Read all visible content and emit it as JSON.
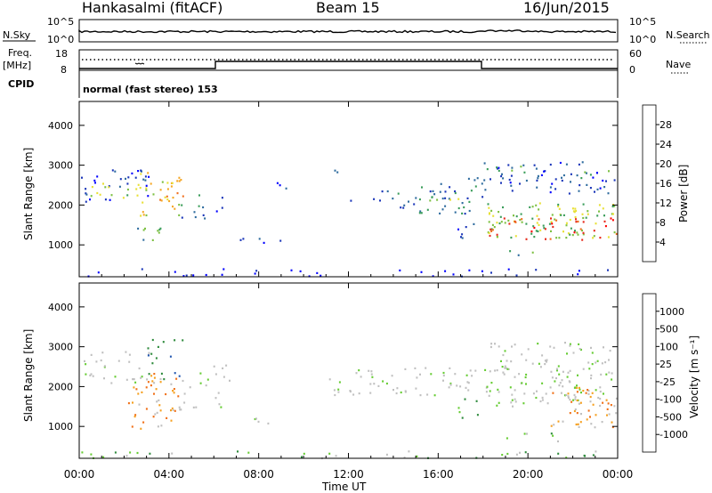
{
  "header": {
    "station": "Hankasalmi (fitACF)",
    "beam": "Beam 15",
    "date": "16/Jun/2015"
  },
  "panels": {
    "nsky": {
      "left_label": "N.Sky",
      "right_label": "N.Search",
      "ticks_left": [
        "10^5",
        "10^0"
      ],
      "ticks_right": [
        "10^5",
        "10^0"
      ]
    },
    "freq": {
      "label_line1": "Freq.",
      "label_line2": "[MHz]",
      "ticks_left": [
        "18",
        "8"
      ],
      "ticks_right": [
        "60",
        "0"
      ],
      "right_label": "Nave"
    },
    "cpid": {
      "label": "CPID",
      "text": "normal (fast stereo) 153"
    }
  },
  "chart_data": [
    {
      "type": "heatmap",
      "name": "power",
      "ylabel": "Slant Range [km]",
      "xlabel": "",
      "ylim": [
        200,
        4600
      ],
      "yticks": [
        "4000",
        "3000",
        "2000",
        "1000"
      ],
      "colorbar_label": "Power [dB]",
      "colorbar_ticks": [
        "28",
        "24",
        "20",
        "16",
        "12",
        "8",
        "4"
      ],
      "colorscale": [
        "#0000ff",
        "#1a35b8",
        "#2e6b9e",
        "#3a9d5a",
        "#7dc043",
        "#e8e035",
        "#f5a623",
        "#f07020",
        "#e62a1c",
        "#ff0000"
      ],
      "xlim_hours": [
        0,
        24
      ]
    },
    {
      "type": "heatmap",
      "name": "velocity",
      "ylabel": "Slant Range [km]",
      "xlabel": "Time UT",
      "ylim": [
        200,
        4600
      ],
      "yticks": [
        "4000",
        "3000",
        "2000",
        "1000"
      ],
      "xticks": [
        "00:00",
        "04:00",
        "08:00",
        "12:00",
        "16:00",
        "20:00",
        "00:00"
      ],
      "colorbar_label": "Velocity [m s⁻¹]",
      "colorbar_ticks": [
        "1000",
        "500",
        "100",
        "25",
        "-25",
        "-100",
        "-500",
        "-1000"
      ],
      "colorscale": [
        "#0033cc",
        "#2257b0",
        "#2e8a3c",
        "#66cc33",
        "#c0c0c0",
        "#c0c0c0",
        "#f5a020",
        "#f07018",
        "#ff0000"
      ],
      "xlim_hours": [
        0,
        24
      ]
    }
  ]
}
